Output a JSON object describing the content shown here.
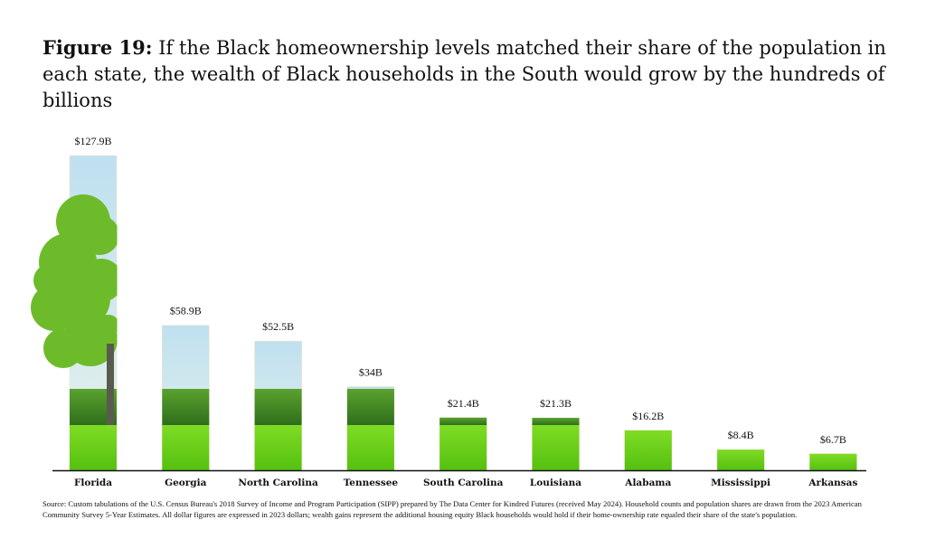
{
  "title": {
    "label": "Figure 19:",
    "text": "If the Black homeownership levels matched their share of the population in each state, the wealth of Black households in the South would grow by the hundreds of billions"
  },
  "chart_data": {
    "type": "bar",
    "title": "Figure 19: If the Black homeownership levels matched their share of the population in each state, the wealth of Black households in the South would grow by the hundreds of billions",
    "categories": [
      "Florida",
      "Georgia",
      "North Carolina",
      "Tennessee",
      "South Carolina",
      "Louisiana",
      "Alabama",
      "Mississippi",
      "Arkansas"
    ],
    "values": [
      127.9,
      58.9,
      52.5,
      34,
      21.4,
      21.3,
      16.2,
      8.4,
      6.7
    ],
    "data_labels": [
      "$127.9B",
      "$58.9B",
      "$52.5B",
      "$34B",
      "$21.4B",
      "$21.3B",
      "$16.2B",
      "$8.4B",
      "$6.7B"
    ],
    "unit": "billions of 2023 dollars",
    "xlabel": "",
    "ylabel": "",
    "ylim": [
      0,
      127.9
    ],
    "grid": false,
    "colors": {
      "sky": "#cfe6f2",
      "trees": "#3f8a22",
      "grass": "#6fd21a",
      "axis": "#111111"
    }
  },
  "source": "Source: Custom tabulations of the U.S. Census Bureau's 2018 Survey of Income and Program Participation (SIPP) prepared by The Data Center for Kindred Futures (received May 2024). Household counts and population shares are drawn from the 2023 American Community Survey 5-Year Estimates. All dollar figures are expressed in 2023 dollars; wealth gains represent the additional housing equity Black households would hold if their home-ownership rate equaled their share of the state's population."
}
